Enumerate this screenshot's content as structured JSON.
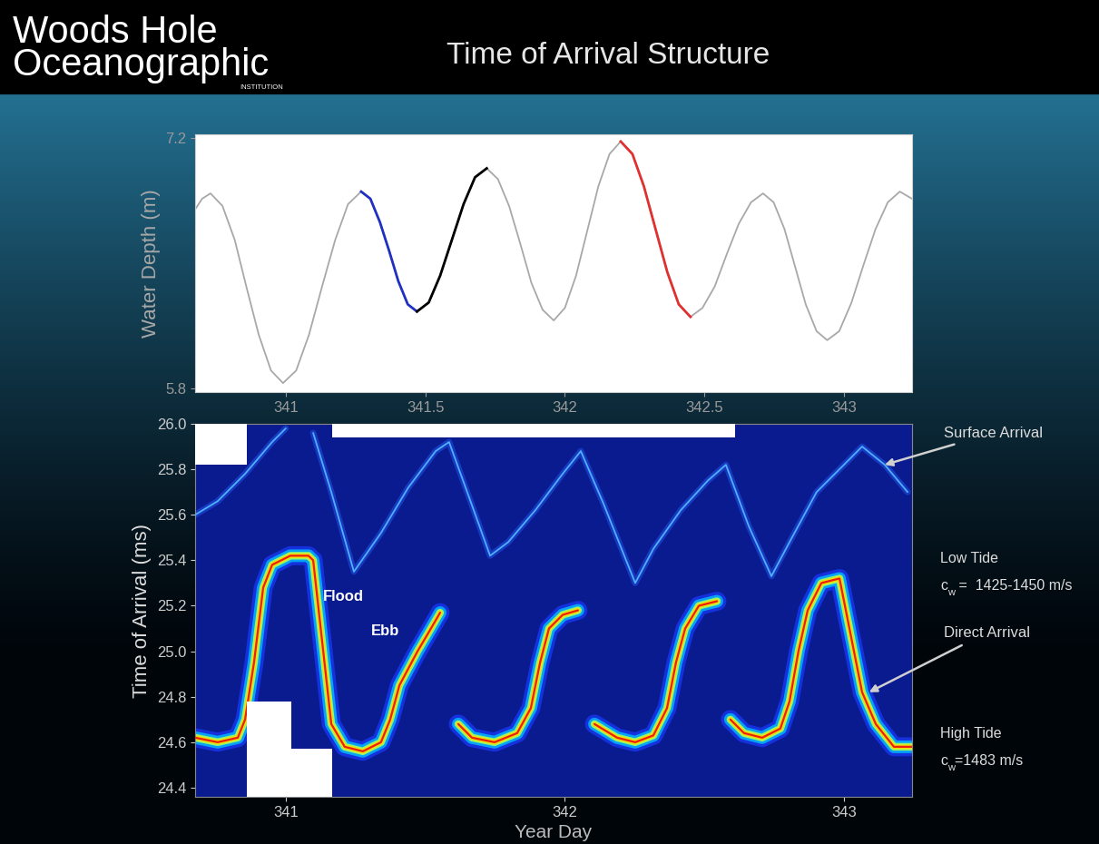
{
  "header": {
    "logo": [
      "Woods Hole",
      "Oceanographic",
      "INSTITUTION"
    ],
    "title": "Time of Arrival Structure"
  },
  "chart_data": [
    {
      "type": "line",
      "ylabel": "Water Depth (m)",
      "xlim": [
        340.675,
        343.244
      ],
      "ylim": [
        5.78,
        7.22
      ],
      "xticks": [
        341,
        341.5,
        342,
        342.5,
        343
      ],
      "yticks": [
        5.8,
        7.2
      ],
      "series": [
        {
          "color": "#a8a8a8",
          "x": [
            340.675,
            340.7,
            340.73,
            340.773,
            340.817,
            340.86,
            340.903,
            340.947,
            340.99,
            341.037,
            341.083,
            341.13,
            341.177,
            341.223,
            341.27,
            341.303,
            341.337,
            341.37,
            341.403,
            341.437,
            341.47,
            341.512,
            341.553,
            341.595,
            341.637,
            341.678,
            341.72,
            341.76,
            341.8,
            341.84,
            341.88,
            341.92,
            341.96,
            342.0,
            342.04,
            342.08,
            342.12,
            342.16,
            342.2,
            342.242,
            342.283,
            342.325,
            342.367,
            342.408,
            342.45,
            342.493,
            342.537,
            342.58,
            342.623,
            342.667,
            342.71,
            342.748,
            342.787,
            342.825,
            342.863,
            342.902,
            342.94,
            342.983,
            343.027,
            343.07,
            343.113,
            343.157,
            343.2,
            343.244
          ],
          "values": [
            6.8,
            6.86,
            6.89,
            6.82,
            6.63,
            6.36,
            6.1,
            5.9,
            5.83,
            5.9,
            6.1,
            6.37,
            6.63,
            6.83,
            6.9,
            6.86,
            6.73,
            6.57,
            6.4,
            6.27,
            6.23,
            6.28,
            6.43,
            6.63,
            6.83,
            6.98,
            7.03,
            6.97,
            6.82,
            6.61,
            6.39,
            6.24,
            6.18,
            6.25,
            6.43,
            6.68,
            6.93,
            7.11,
            7.18,
            7.11,
            6.93,
            6.69,
            6.45,
            6.27,
            6.2,
            6.25,
            6.37,
            6.55,
            6.72,
            6.84,
            6.89,
            6.84,
            6.69,
            6.48,
            6.27,
            6.12,
            6.07,
            6.12,
            6.28,
            6.49,
            6.69,
            6.84,
            6.9,
            6.86
          ]
        },
        {
          "color": "#2030c0",
          "x": [
            341.27,
            341.303,
            341.337,
            341.37,
            341.403,
            341.437,
            341.47
          ],
          "values": [
            6.9,
            6.86,
            6.73,
            6.57,
            6.4,
            6.27,
            6.23
          ]
        },
        {
          "color": "#000000",
          "x": [
            341.47,
            341.512,
            341.553,
            341.595,
            341.637,
            341.678,
            341.72
          ],
          "values": [
            6.23,
            6.28,
            6.43,
            6.63,
            6.83,
            6.98,
            7.03
          ]
        },
        {
          "color": "#e03030",
          "x": [
            342.2,
            342.242,
            342.283,
            342.325,
            342.367,
            342.408,
            342.45
          ],
          "values": [
            7.18,
            7.11,
            6.93,
            6.69,
            6.45,
            6.27,
            6.2
          ]
        }
      ]
    },
    {
      "type": "line",
      "xlabel": "Year Day",
      "ylabel": "Time of Arrival (ms)",
      "xlim": [
        340.675,
        343.244
      ],
      "ylim": [
        24.36,
        26.0
      ],
      "xticks": [
        341,
        342,
        343
      ],
      "yticks": [
        24.4,
        24.6,
        24.8,
        25.0,
        25.2,
        25.4,
        25.6,
        25.8,
        26.0
      ],
      "series": [
        {
          "color": "#e8200c",
          "x": [
            340.675,
            340.756,
            340.828,
            340.854,
            340.886,
            340.919,
            340.951,
            341.016,
            341.081,
            341.098,
            341.163,
            341.211,
            341.276,
            341.341,
            341.374,
            341.407,
            341.472,
            341.52,
            341.553,
            341.585,
            341.618,
            341.667,
            341.748,
            341.829,
            341.878,
            341.911,
            341.943,
            341.992,
            342.047,
            342.076,
            342.106,
            342.187,
            342.252,
            342.317,
            342.366,
            342.398,
            342.431,
            342.48,
            342.545,
            342.567,
            342.593,
            342.642,
            342.707,
            342.772,
            342.805,
            342.837,
            342.87,
            342.919,
            342.984,
            343.065,
            343.114,
            343.179,
            343.244
          ],
          "values": [
            24.62,
            24.6,
            24.62,
            24.7,
            24.95,
            25.28,
            25.38,
            25.42,
            25.42,
            25.4,
            24.68,
            24.58,
            24.56,
            24.6,
            24.7,
            24.85,
            25.0,
            25.1,
            25.17,
            null,
            24.68,
            24.62,
            24.6,
            24.64,
            24.75,
            24.95,
            25.1,
            25.16,
            25.18,
            null,
            24.68,
            24.62,
            24.6,
            24.63,
            24.75,
            24.95,
            25.1,
            25.2,
            25.22,
            null,
            24.7,
            24.64,
            24.62,
            24.66,
            24.78,
            25.0,
            25.18,
            25.3,
            25.32,
            24.82,
            24.68,
            24.58,
            24.58
          ]
        },
        {
          "color": "#4fb0ff",
          "x": [
            340.675,
            340.756,
            340.854,
            340.951,
            341.0,
            341.05,
            341.098,
            341.163,
            341.244,
            341.341,
            341.439,
            341.537,
            341.585,
            341.65,
            341.732,
            341.797,
            341.894,
            341.992,
            342.057,
            342.138,
            342.252,
            342.317,
            342.415,
            342.512,
            342.577,
            342.659,
            342.74,
            342.805,
            342.902,
            343.0,
            343.065,
            343.146,
            343.228
          ],
          "values": [
            25.6,
            25.66,
            25.78,
            25.92,
            25.98,
            null,
            25.96,
            25.7,
            25.35,
            25.52,
            25.72,
            25.88,
            25.92,
            25.7,
            25.42,
            25.48,
            25.62,
            25.78,
            25.88,
            25.65,
            25.3,
            25.45,
            25.62,
            25.75,
            25.82,
            25.55,
            25.33,
            25.48,
            25.7,
            25.82,
            25.9,
            25.82,
            25.7
          ]
        }
      ],
      "annotations": [
        {
          "text": "Flood",
          "x": 341.205,
          "y": 25.24
        },
        {
          "text": "Ebb",
          "x": 341.358,
          "y": 25.09
        }
      ],
      "callouts": [
        {
          "text": "Surface Arrival",
          "x": 343.146,
          "y": 25.82
        },
        {
          "text": "Direct Arrival",
          "x": 343.09,
          "y": 24.82
        }
      ],
      "notes": [
        {
          "title": "Low Tide",
          "symbol": "c",
          "subscript": "w",
          "text": " =  1425-1450 m/s"
        },
        {
          "title": "High Tide",
          "symbol": "c",
          "subscript": "w",
          "text": "=1483 m/s"
        }
      ],
      "gaps": [
        {
          "x": [
            340.675,
            340.86
          ],
          "y": [
            25.82,
            26.0
          ]
        },
        {
          "x": [
            341.165,
            342.61
          ],
          "y": [
            25.94,
            26.0
          ]
        },
        {
          "x": [
            340.86,
            341.02
          ],
          "y": [
            24.36,
            24.78
          ]
        },
        {
          "x": [
            341.02,
            341.165
          ],
          "y": [
            24.36,
            24.57
          ]
        }
      ]
    }
  ]
}
